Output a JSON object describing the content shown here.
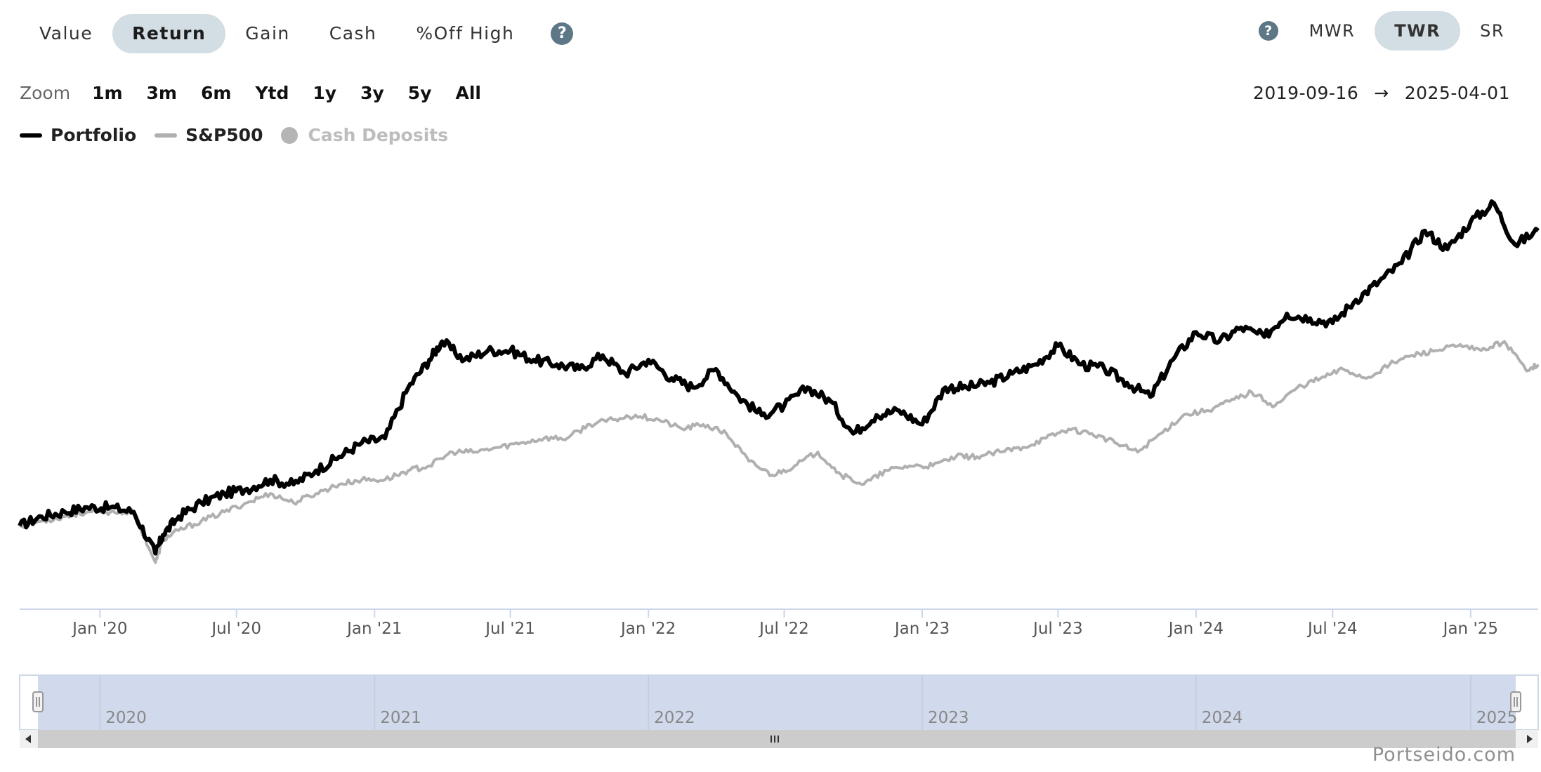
{
  "metric_tabs": [
    "Value",
    "Return",
    "Gain",
    "Cash",
    "%Off High"
  ],
  "active_metric": "Return",
  "method_tabs": [
    "MWR",
    "TWR",
    "SR"
  ],
  "active_method": "TWR",
  "zoom": {
    "label": "Zoom",
    "options": [
      "1m",
      "3m",
      "6m",
      "Ytd",
      "1y",
      "3y",
      "5y",
      "All"
    ]
  },
  "date_range": {
    "start": "2019-09-16",
    "arrow": "→",
    "end": "2025-04-01"
  },
  "legend": [
    {
      "name": "Portfolio",
      "color": "#000000",
      "kind": "line",
      "enabled": true
    },
    {
      "name": "S&P500",
      "color": "#b0b0b0",
      "kind": "line",
      "enabled": true
    },
    {
      "name": "Cash Deposits",
      "color": "#b5b5b5",
      "kind": "dot",
      "enabled": false
    }
  ],
  "watermark": "Portseido.com",
  "chart_data": {
    "type": "line",
    "x_tick_labels": [
      "Jan '20",
      "Jul '20",
      "Jan '21",
      "Jul '21",
      "Jan '22",
      "Jul '22",
      "Jan '23",
      "Jul '23",
      "Jan '24",
      "Jul '24",
      "Jan '25"
    ],
    "navigator_year_labels": [
      "2020",
      "2021",
      "2022",
      "2023",
      "2024",
      "2025"
    ],
    "x_range": [
      "2019-09-16",
      "2025-04-01"
    ],
    "y_axis_shown": false,
    "grid": false,
    "legend_position": "top-left",
    "series": [
      {
        "name": "Portfolio",
        "color": "#000000",
        "points": [
          [
            "2019-09-16",
            0
          ],
          [
            "2019-10-15",
            2
          ],
          [
            "2019-11-15",
            3
          ],
          [
            "2019-12-15",
            4
          ],
          [
            "2020-01-15",
            4
          ],
          [
            "2020-02-15",
            3
          ],
          [
            "2020-03-15",
            -6
          ],
          [
            "2020-03-25",
            -2
          ],
          [
            "2020-04-15",
            2
          ],
          [
            "2020-05-15",
            5
          ],
          [
            "2020-06-15",
            7
          ],
          [
            "2020-07-15",
            8
          ],
          [
            "2020-08-15",
            10
          ],
          [
            "2020-09-15",
            9
          ],
          [
            "2020-10-15",
            12
          ],
          [
            "2020-11-15",
            15
          ],
          [
            "2020-12-15",
            18
          ],
          [
            "2021-01-15",
            19
          ],
          [
            "2021-02-15",
            30
          ],
          [
            "2021-03-15",
            36
          ],
          [
            "2021-04-01",
            40
          ],
          [
            "2021-05-01",
            36
          ],
          [
            "2021-06-01",
            38
          ],
          [
            "2021-07-01",
            38
          ],
          [
            "2021-08-01",
            36
          ],
          [
            "2021-09-01",
            35
          ],
          [
            "2021-10-01",
            34
          ],
          [
            "2021-11-01",
            37
          ],
          [
            "2021-12-01",
            33
          ],
          [
            "2022-01-01",
            36
          ],
          [
            "2022-02-01",
            32
          ],
          [
            "2022-03-01",
            30
          ],
          [
            "2022-04-01",
            34
          ],
          [
            "2022-05-01",
            28
          ],
          [
            "2022-06-01",
            24
          ],
          [
            "2022-07-01",
            26
          ],
          [
            "2022-08-01",
            30
          ],
          [
            "2022-09-01",
            27
          ],
          [
            "2022-10-01",
            20
          ],
          [
            "2022-11-01",
            24
          ],
          [
            "2022-12-01",
            25
          ],
          [
            "2023-01-01",
            22
          ],
          [
            "2023-02-01",
            30
          ],
          [
            "2023-03-01",
            30
          ],
          [
            "2023-04-01",
            31
          ],
          [
            "2023-05-01",
            33
          ],
          [
            "2023-06-01",
            35
          ],
          [
            "2023-07-01",
            39
          ],
          [
            "2023-08-01",
            35
          ],
          [
            "2023-09-01",
            34
          ],
          [
            "2023-10-01",
            31
          ],
          [
            "2023-11-01",
            28
          ],
          [
            "2023-12-01",
            36
          ],
          [
            "2024-01-01",
            42
          ],
          [
            "2024-02-01",
            40
          ],
          [
            "2024-03-01",
            43
          ],
          [
            "2024-04-01",
            41
          ],
          [
            "2024-05-01",
            46
          ],
          [
            "2024-06-01",
            45
          ],
          [
            "2024-07-01",
            44
          ],
          [
            "2024-08-01",
            49
          ],
          [
            "2024-09-01",
            53
          ],
          [
            "2024-10-01",
            57
          ],
          [
            "2024-11-01",
            64
          ],
          [
            "2024-12-01",
            60
          ],
          [
            "2025-01-01",
            66
          ],
          [
            "2025-02-01",
            70
          ],
          [
            "2025-03-01",
            61
          ],
          [
            "2025-04-01",
            64
          ]
        ]
      },
      {
        "name": "S&P500",
        "color": "#b0b0b0",
        "points": [
          [
            "2019-09-16",
            0
          ],
          [
            "2019-10-15",
            1
          ],
          [
            "2019-11-15",
            2
          ],
          [
            "2019-12-15",
            3
          ],
          [
            "2020-01-15",
            3
          ],
          [
            "2020-02-15",
            3
          ],
          [
            "2020-03-15",
            -8
          ],
          [
            "2020-03-25",
            -3
          ],
          [
            "2020-04-15",
            -1
          ],
          [
            "2020-05-15",
            1
          ],
          [
            "2020-06-15",
            3
          ],
          [
            "2020-07-15",
            5
          ],
          [
            "2020-08-15",
            7
          ],
          [
            "2020-09-15",
            5
          ],
          [
            "2020-10-15",
            7
          ],
          [
            "2020-11-15",
            9
          ],
          [
            "2020-12-15",
            10
          ],
          [
            "2021-01-15",
            10
          ],
          [
            "2021-02-15",
            12
          ],
          [
            "2021-03-15",
            13
          ],
          [
            "2021-04-15",
            16
          ],
          [
            "2021-05-15",
            16
          ],
          [
            "2021-06-15",
            17
          ],
          [
            "2021-07-15",
            18
          ],
          [
            "2021-08-15",
            19
          ],
          [
            "2021-09-15",
            19
          ],
          [
            "2021-10-15",
            22
          ],
          [
            "2021-11-15",
            23
          ],
          [
            "2021-12-15",
            24
          ],
          [
            "2022-01-15",
            23
          ],
          [
            "2022-02-15",
            21
          ],
          [
            "2022-03-15",
            22
          ],
          [
            "2022-04-15",
            20
          ],
          [
            "2022-05-15",
            14
          ],
          [
            "2022-06-15",
            11
          ],
          [
            "2022-07-15",
            13
          ],
          [
            "2022-08-15",
            16
          ],
          [
            "2022-09-15",
            11
          ],
          [
            "2022-10-15",
            9
          ],
          [
            "2022-11-15",
            12
          ],
          [
            "2022-12-15",
            13
          ],
          [
            "2023-01-15",
            13
          ],
          [
            "2023-02-15",
            15
          ],
          [
            "2023-03-15",
            15
          ],
          [
            "2023-04-15",
            16
          ],
          [
            "2023-05-15",
            17
          ],
          [
            "2023-06-15",
            19
          ],
          [
            "2023-07-15",
            21
          ],
          [
            "2023-08-15",
            20
          ],
          [
            "2023-09-15",
            18
          ],
          [
            "2023-10-15",
            16
          ],
          [
            "2023-11-15",
            20
          ],
          [
            "2023-12-15",
            24
          ],
          [
            "2024-01-15",
            25
          ],
          [
            "2024-02-15",
            27
          ],
          [
            "2024-03-15",
            29
          ],
          [
            "2024-04-15",
            26
          ],
          [
            "2024-05-15",
            30
          ],
          [
            "2024-06-15",
            32
          ],
          [
            "2024-07-15",
            34
          ],
          [
            "2024-08-15",
            32
          ],
          [
            "2024-09-15",
            35
          ],
          [
            "2024-10-15",
            37
          ],
          [
            "2024-11-15",
            38
          ],
          [
            "2024-12-15",
            39
          ],
          [
            "2025-01-15",
            38
          ],
          [
            "2025-02-15",
            40
          ],
          [
            "2025-03-15",
            34
          ],
          [
            "2025-04-01",
            35
          ]
        ]
      }
    ]
  }
}
